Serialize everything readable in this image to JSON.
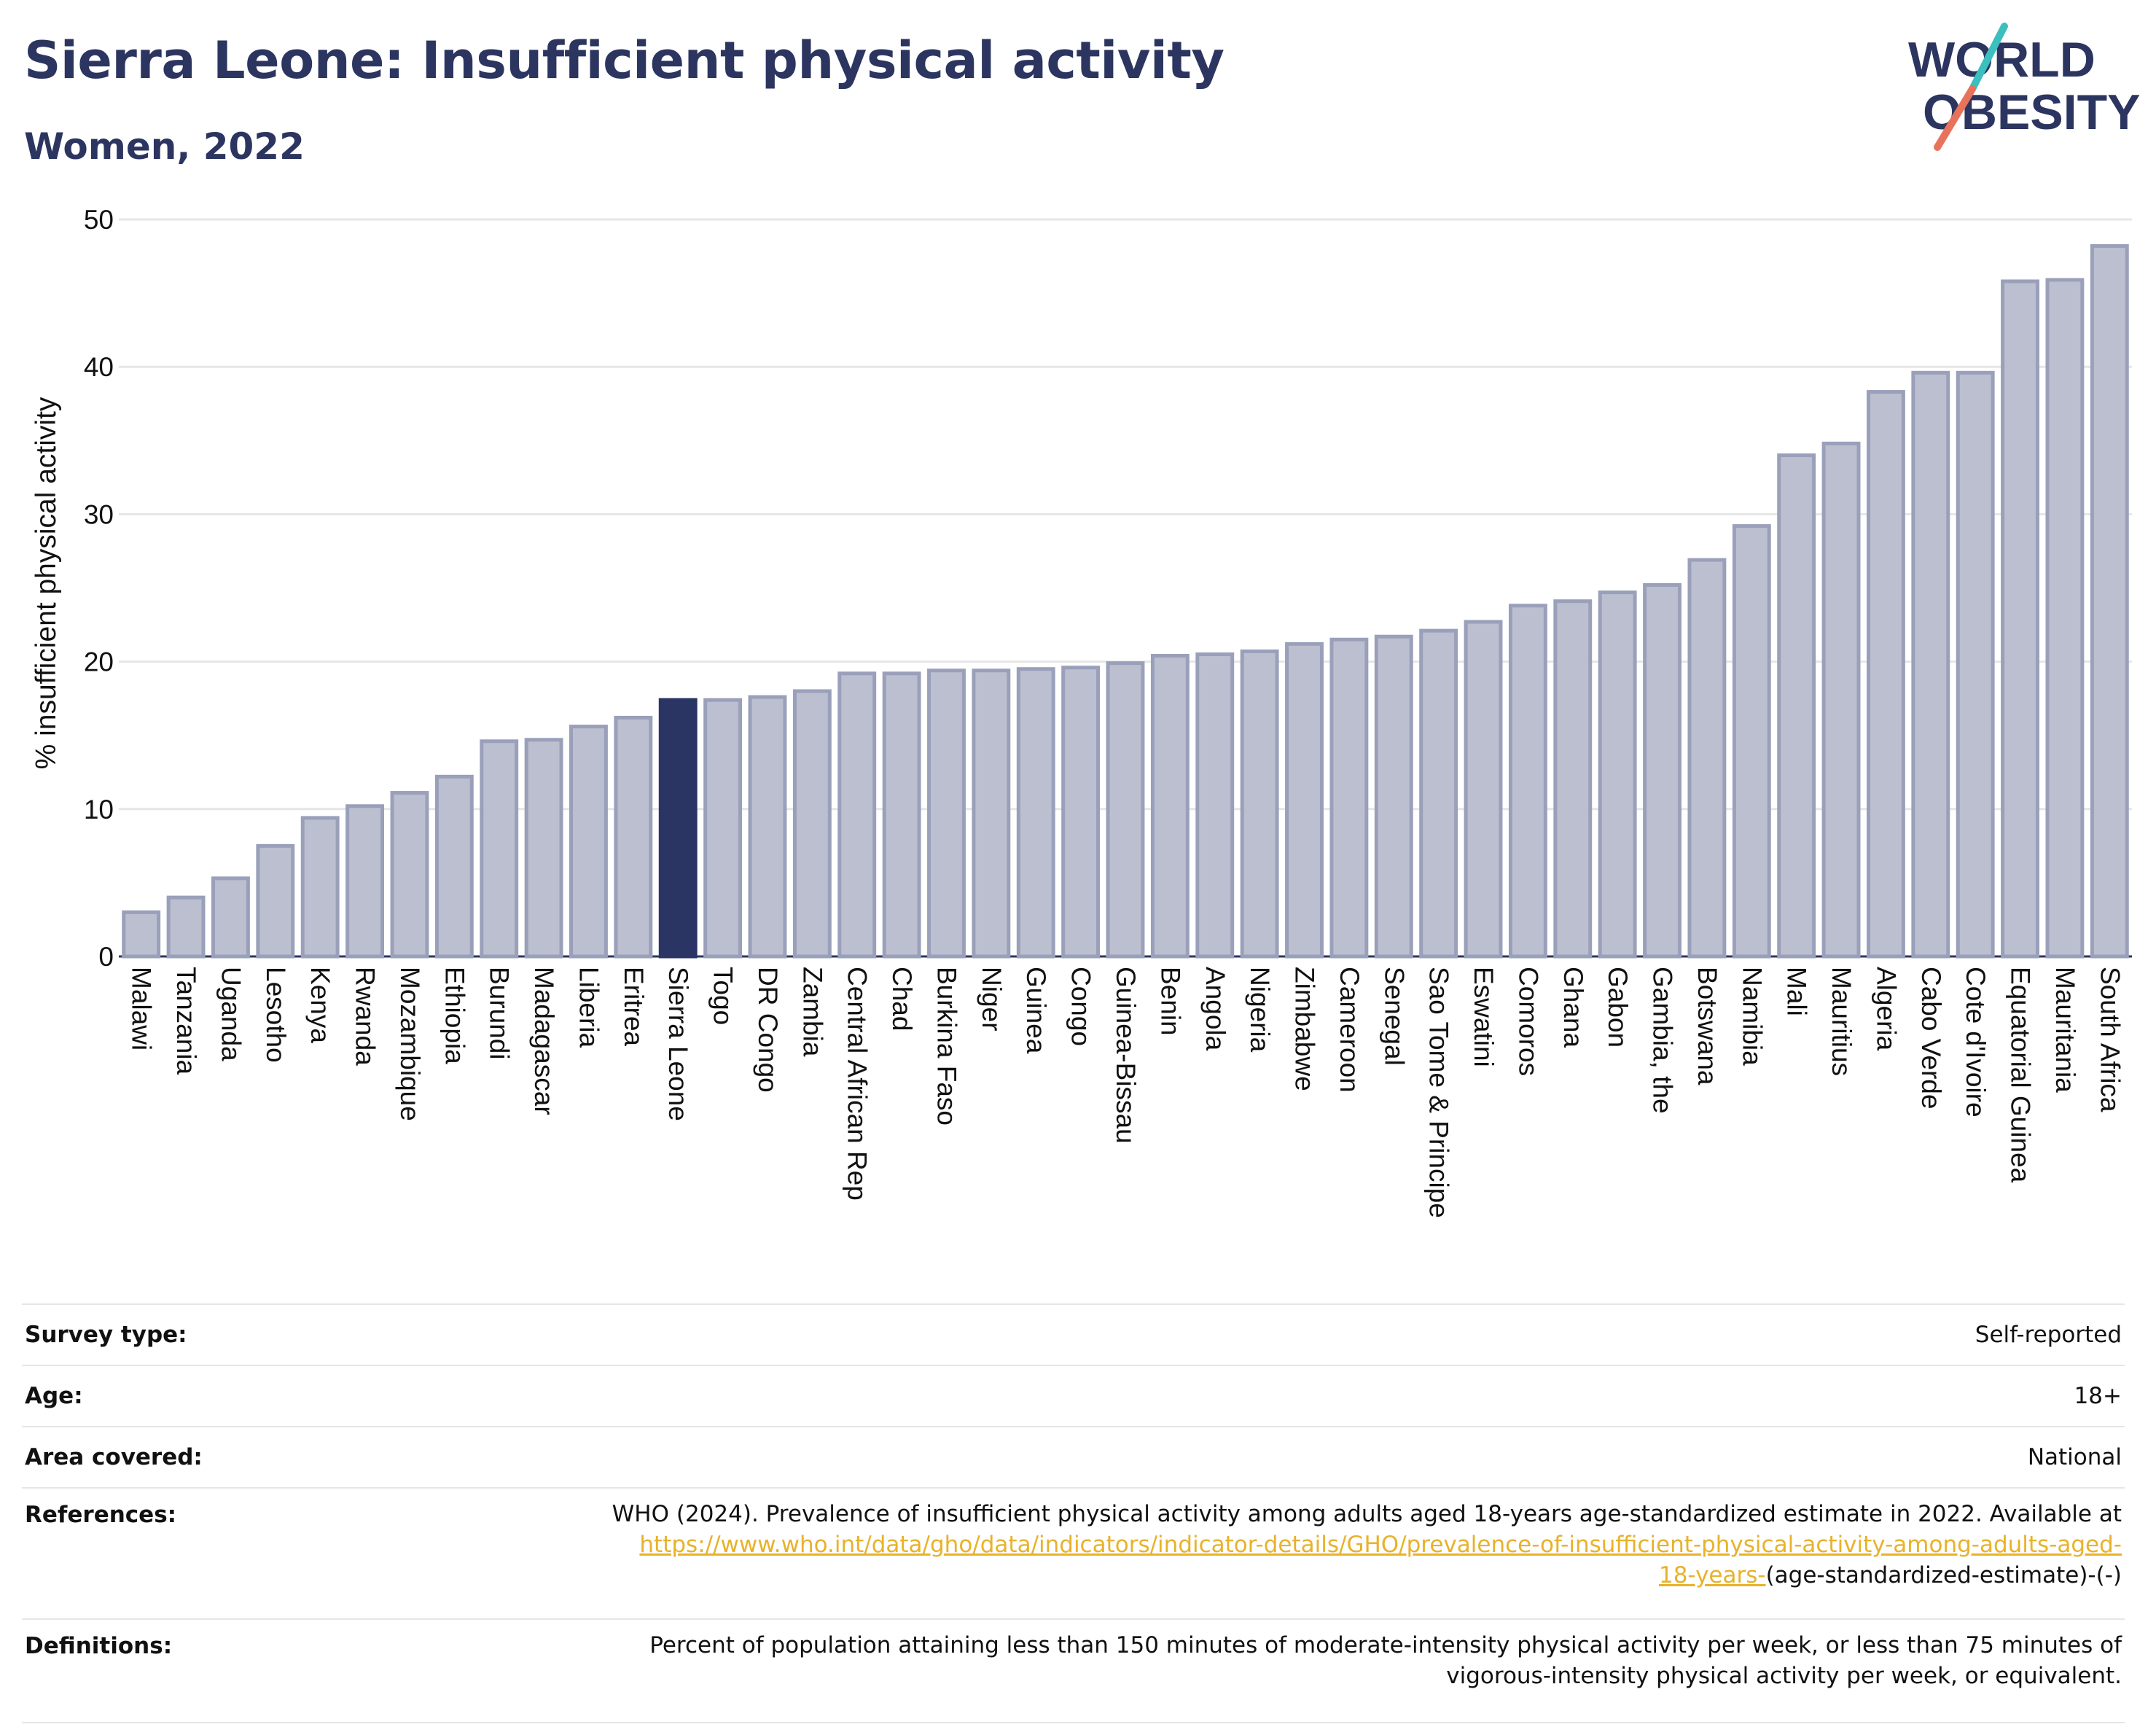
{
  "header": {
    "title": "Sierra Leone: Insufficient physical activity",
    "subtitle": "Women, 2022",
    "logo_line1": "WORLD",
    "logo_line2": "OBESITY"
  },
  "colors": {
    "title": "#2c3560",
    "highlight_bar": "#2a3563",
    "bar_fill": "#bbbfcf",
    "bar_stroke": "#9aa0ba",
    "link": "#e8b22a",
    "logo_teal": "#3bbfbf",
    "logo_coral": "#e8735a"
  },
  "chart_data": {
    "type": "bar",
    "ylabel": "% insufficient physical activity",
    "xlabel": "",
    "ylim": [
      0,
      50
    ],
    "yticks": [
      0,
      10,
      20,
      30,
      40,
      50
    ],
    "grid": true,
    "highlight": "Sierra Leone",
    "categories": [
      "Malawi",
      "Tanzania",
      "Uganda",
      "Lesotho",
      "Kenya",
      "Rwanda",
      "Mozambique",
      "Ethiopia",
      "Burundi",
      "Madagascar",
      "Liberia",
      "Eritrea",
      "Sierra Leone",
      "Togo",
      "DR Congo",
      "Zambia",
      "Central African Rep",
      "Chad",
      "Burkina Faso",
      "Niger",
      "Guinea",
      "Congo",
      "Guinea-Bissau",
      "Benin",
      "Angola",
      "Nigeria",
      "Zimbabwe",
      "Cameroon",
      "Senegal",
      "Sao Tome & Principe",
      "Eswatini",
      "Comoros",
      "Ghana",
      "Gabon",
      "Gambia, the",
      "Botswana",
      "Namibia",
      "Mali",
      "Mauritius",
      "Algeria",
      "Cabo Verde",
      "Cote d'Ivoire",
      "Equatorial Guinea",
      "Mauritania",
      "South Africa"
    ],
    "values": [
      3.0,
      4.0,
      5.3,
      7.5,
      9.4,
      10.2,
      11.1,
      12.2,
      14.6,
      14.7,
      15.6,
      16.2,
      17.4,
      17.4,
      17.6,
      18.0,
      19.2,
      19.2,
      19.4,
      19.4,
      19.5,
      19.6,
      19.9,
      20.4,
      20.5,
      20.7,
      21.2,
      21.5,
      21.7,
      22.1,
      22.7,
      23.8,
      24.1,
      24.7,
      25.2,
      26.9,
      29.2,
      34.0,
      34.8,
      38.3,
      39.6,
      39.6,
      45.8,
      45.9,
      48.2
    ]
  },
  "info": {
    "survey_type_label": "Survey type:",
    "survey_type_value": "Self-reported",
    "age_label": "Age:",
    "age_value": "18+",
    "area_label": "Area covered:",
    "area_value": "National",
    "references_label": "References:",
    "references_text": "WHO (2024). Prevalence of insufficient physical activity among adults aged 18-years age-standardized estimate in 2022. Available at",
    "references_link_line1": "https://www.who.int/data/gho/data/indicators/indicator-details/GHO/prevalence-of-insufficient-physical-activity-among-adults-aged-",
    "references_link_line2": "18-years-",
    "references_tail": "(age-standardized-estimate)-(-)",
    "definitions_label": "Definitions:",
    "definitions_line1": "Percent of population attaining less than 150 minutes of moderate-intensity physical activity per week, or less than 75 minutes of",
    "definitions_line2": "vigorous-intensity physical activity per week, or equivalent."
  }
}
